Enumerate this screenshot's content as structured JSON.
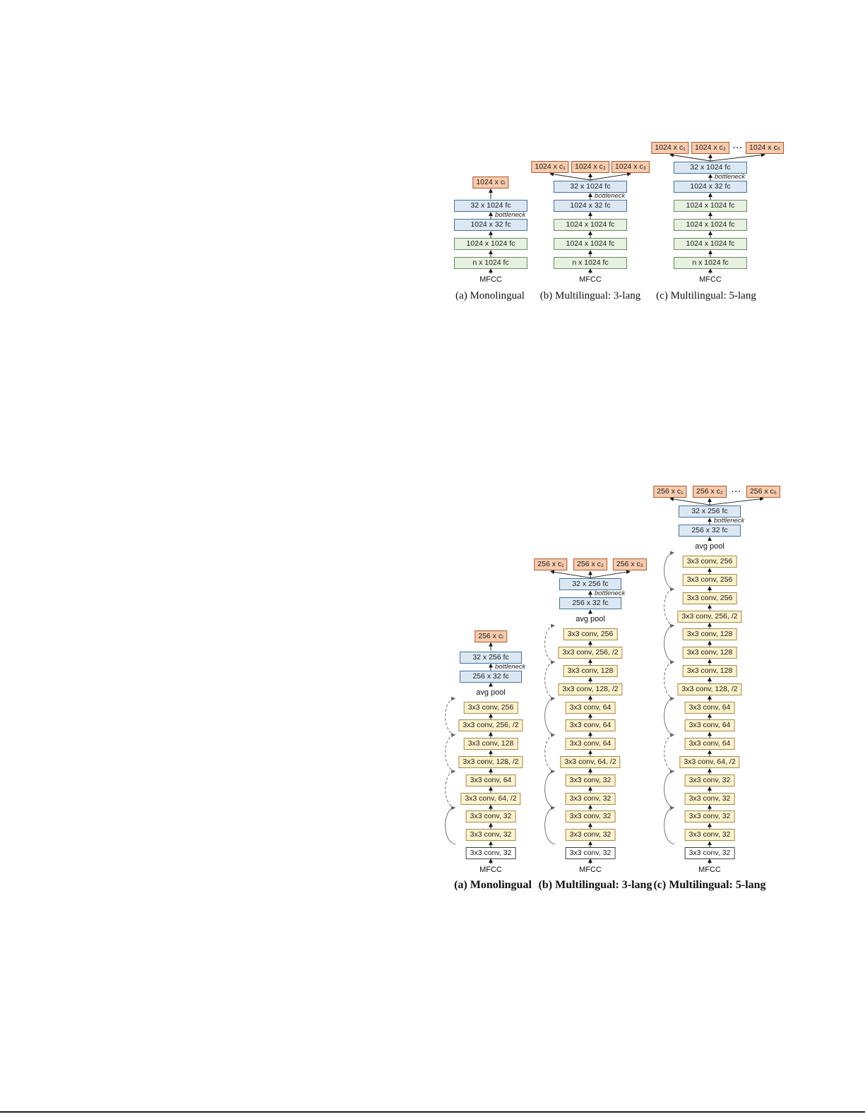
{
  "colors": {
    "green_fill": "#e7f1e0",
    "green_border": "#6b8a62",
    "blue_fill": "#dbe8f4",
    "blue_border": "#477099",
    "orange_fill": "#f8cbad",
    "orange_border": "#a85b32",
    "yellow_fill": "#fff2cc",
    "yellow_border": "#9f8a50",
    "arrow": "#1a1a1a",
    "skip": "#666666"
  },
  "figures": [
    {
      "id": "dnn-bottleneck",
      "input_label": "MFCC",
      "bottleneck_label": "bottleneck",
      "columns": [
        {
          "caption": "(a) Monolingual",
          "layers": [
            {
              "label": "n x 1024 fc",
              "type": "green"
            },
            {
              "label": "1024 x 1024 fc",
              "type": "green"
            },
            {
              "label": "1024 x 32 fc",
              "type": "blue"
            },
            {
              "label": "32 x 1024 fc",
              "type": "blue"
            }
          ],
          "bottleneck_after_layer": 2,
          "outputs": [
            {
              "label": "1024 x cᵢ"
            }
          ]
        },
        {
          "caption": "(b) Multilingual: 3-lang",
          "layers": [
            {
              "label": "n x 1024 fc",
              "type": "green"
            },
            {
              "label": "1024 x 1024 fc",
              "type": "green"
            },
            {
              "label": "1024 x 1024 fc",
              "type": "green"
            },
            {
              "label": "1024 x 32 fc",
              "type": "blue"
            },
            {
              "label": "32 x 1024 fc",
              "type": "blue"
            }
          ],
          "bottleneck_after_layer": 3,
          "outputs": [
            {
              "label": "1024 x c₁"
            },
            {
              "label": "1024 x c₂"
            },
            {
              "label": "1024 x c₃"
            }
          ]
        },
        {
          "caption": "(c) Multilingual: 5-lang",
          "layers": [
            {
              "label": "n x 1024 fc",
              "type": "green"
            },
            {
              "label": "1024 x 1024 fc",
              "type": "green"
            },
            {
              "label": "1024 x 1024 fc",
              "type": "green"
            },
            {
              "label": "1024 x 1024 fc",
              "type": "green"
            },
            {
              "label": "1024 x 32 fc",
              "type": "blue"
            },
            {
              "label": "32 x 1024 fc",
              "type": "blue"
            }
          ],
          "bottleneck_after_layer": 4,
          "outputs": [
            {
              "label": "1024 x c₁"
            },
            {
              "label": "1024 x c₂"
            },
            {
              "label": "···",
              "dots": true
            },
            {
              "label": "1024 x c₅"
            }
          ]
        }
      ]
    },
    {
      "id": "cnn-bottleneck",
      "input_label": "MFCC",
      "bottleneck_label": "bottleneck",
      "pool_label": "avg pool",
      "columns": [
        {
          "caption": "(a) Monolingual",
          "layers": [
            {
              "label": "3x3 conv, 32",
              "type": "white"
            },
            {
              "label": "3x3 conv, 32",
              "type": "yellow"
            },
            {
              "label": "3x3 conv, 32",
              "type": "yellow"
            },
            {
              "label": "3x3 conv, 64, /2",
              "type": "yellow",
              "down": true
            },
            {
              "label": "3x3 conv, 64",
              "type": "yellow"
            },
            {
              "label": "3x3 conv, 128, /2",
              "type": "yellow",
              "down": true
            },
            {
              "label": "3x3 conv, 128",
              "type": "yellow"
            },
            {
              "label": "3x3 conv, 256, /2",
              "type": "yellow",
              "down": true
            },
            {
              "label": "3x3 conv, 256",
              "type": "yellow"
            }
          ],
          "head": [
            {
              "label": "256 x 32 fc"
            },
            {
              "label": "32 x 256 fc"
            }
          ],
          "outputs": [
            {
              "label": "256 x cᵢ"
            }
          ]
        },
        {
          "caption": "(b) Multilingual: 3-lang",
          "layers": [
            {
              "label": "3x3 conv, 32",
              "type": "white"
            },
            {
              "label": "3x3 conv, 32",
              "type": "yellow"
            },
            {
              "label": "3x3 conv, 32",
              "type": "yellow"
            },
            {
              "label": "3x3 conv, 32",
              "type": "yellow"
            },
            {
              "label": "3x3 conv, 32",
              "type": "yellow"
            },
            {
              "label": "3x3 conv, 64, /2",
              "type": "yellow",
              "down": true
            },
            {
              "label": "3x3 conv, 64",
              "type": "yellow"
            },
            {
              "label": "3x3 conv, 64",
              "type": "yellow"
            },
            {
              "label": "3x3 conv, 64",
              "type": "yellow"
            },
            {
              "label": "3x3 conv, 128, /2",
              "type": "yellow",
              "down": true
            },
            {
              "label": "3x3 conv, 128",
              "type": "yellow"
            },
            {
              "label": "3x3 conv, 256, /2",
              "type": "yellow",
              "down": true
            },
            {
              "label": "3x3 conv, 256",
              "type": "yellow"
            }
          ],
          "head": [
            {
              "label": "256 x 32 fc"
            },
            {
              "label": "32 x 256 fc"
            }
          ],
          "outputs": [
            {
              "label": "256 x c₁"
            },
            {
              "label": "256 x c₂"
            },
            {
              "label": "256 x c₃"
            }
          ]
        },
        {
          "caption": "(c) Multilingual: 5-lang",
          "layers": [
            {
              "label": "3x3 conv, 32",
              "type": "white"
            },
            {
              "label": "3x3 conv, 32",
              "type": "yellow"
            },
            {
              "label": "3x3 conv, 32",
              "type": "yellow"
            },
            {
              "label": "3x3 conv, 32",
              "type": "yellow"
            },
            {
              "label": "3x3 conv, 32",
              "type": "yellow"
            },
            {
              "label": "3x3 conv, 64, /2",
              "type": "yellow",
              "down": true
            },
            {
              "label": "3x3 conv, 64",
              "type": "yellow"
            },
            {
              "label": "3x3 conv, 64",
              "type": "yellow"
            },
            {
              "label": "3x3 conv, 64",
              "type": "yellow"
            },
            {
              "label": "3x3 conv, 128, /2",
              "type": "yellow",
              "down": true
            },
            {
              "label": "3x3 conv, 128",
              "type": "yellow"
            },
            {
              "label": "3x3 conv, 128",
              "type": "yellow"
            },
            {
              "label": "3x3 conv, 128",
              "type": "yellow"
            },
            {
              "label": "3x3 conv, 256, /2",
              "type": "yellow",
              "down": true
            },
            {
              "label": "3x3 conv, 256",
              "type": "yellow"
            },
            {
              "label": "3x3 conv, 256",
              "type": "yellow"
            },
            {
              "label": "3x3 conv, 256",
              "type": "yellow"
            }
          ],
          "head": [
            {
              "label": "256 x 32 fc"
            },
            {
              "label": "32 x 256 fc"
            }
          ],
          "outputs": [
            {
              "label": "256 x c₁"
            },
            {
              "label": "256 x c₂"
            },
            {
              "label": "···",
              "dots": true
            },
            {
              "label": "256 x c₅"
            }
          ]
        }
      ]
    }
  ]
}
